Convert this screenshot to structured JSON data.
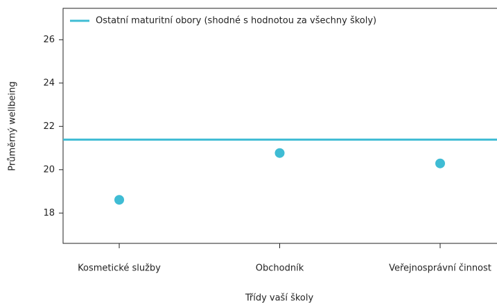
{
  "chart_data": {
    "type": "scatter",
    "xlabel": "Třídy vaší školy",
    "ylabel": "Průměrný wellbeing",
    "categories": [
      "Kosmetické služby",
      "Obchodník",
      "Veřejnosprávní činnost"
    ],
    "values": [
      18.61,
      20.77,
      20.29
    ],
    "color": "#3fbcd4",
    "reference_line": {
      "name": "Ostatní maturitní obory (shodné s hodnotou za všechny školy)",
      "value": 21.39,
      "color": "#3fbcd4"
    },
    "ylim": [
      16.6,
      27.45
    ],
    "yticks": [
      18,
      20,
      22,
      24,
      26
    ],
    "legend": "top-left"
  }
}
